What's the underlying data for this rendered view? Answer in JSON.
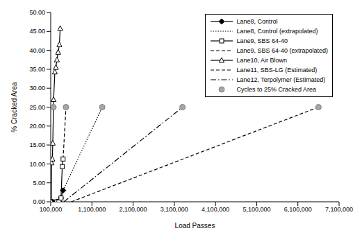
{
  "chart_data": {
    "type": "line",
    "x_label": "Load Passes",
    "y_label": "% Cracked Area",
    "xlim": [
      100000,
      7100000
    ],
    "ylim": [
      0,
      50
    ],
    "xticks": [
      {
        "value": 100000,
        "label": "100,000"
      },
      {
        "value": 1100000,
        "label": "1,100,000"
      },
      {
        "value": 2100000,
        "label": "2,100,000"
      },
      {
        "value": 3100000,
        "label": "3,100,000"
      },
      {
        "value": 4100000,
        "label": "4,100,000"
      },
      {
        "value": 5100000,
        "label": "5,100,000"
      },
      {
        "value": 6100000,
        "label": "6,100,000"
      },
      {
        "value": 7100000,
        "label": "7,100,000"
      }
    ],
    "yticks": [
      {
        "value": 0,
        "label": "0.00"
      },
      {
        "value": 5,
        "label": "5.00"
      },
      {
        "value": 10,
        "label": "10.00"
      },
      {
        "value": 15,
        "label": "15.00"
      },
      {
        "value": 20,
        "label": "20.00"
      },
      {
        "value": 25,
        "label": "25.00"
      },
      {
        "value": 30,
        "label": "30.00"
      },
      {
        "value": 35,
        "label": "35.00"
      },
      {
        "value": 40,
        "label": "40.00"
      },
      {
        "value": 45,
        "label": "45.00"
      },
      {
        "value": 50,
        "label": "50.00"
      }
    ],
    "grid": false,
    "legend": "top-right",
    "series": [
      {
        "name": "Lane8, Control",
        "type": "line",
        "color": "#000000",
        "marker": "diamond",
        "line_style": "solid",
        "x": [
          150000,
          250000,
          300000,
          350000,
          400000
        ],
        "values": [
          0,
          0,
          0,
          1,
          3
        ]
      },
      {
        "name": "Lane8, Control (extrapolated)",
        "type": "line",
        "color": "#000000",
        "marker": "none",
        "line_style": "dotted",
        "x": [
          400000,
          1350000
        ],
        "values": [
          3,
          25
        ]
      },
      {
        "name": "Lane9, SBS 64-40",
        "type": "line",
        "color": "#000000",
        "marker": "square-open",
        "line_style": "solid",
        "x": [
          250000,
          300000,
          350000,
          380000,
          400000
        ],
        "values": [
          0,
          0,
          1,
          9.3,
          11.3
        ]
      },
      {
        "name": "Lane9, SBS 64-40 (extrapolated)",
        "type": "line",
        "color": "#000000",
        "marker": "none",
        "line_style": "dashed",
        "x": [
          400000,
          470000
        ],
        "values": [
          11.3,
          25
        ]
      },
      {
        "name": "Lane10, Air Blown",
        "type": "line",
        "color": "#000000",
        "marker": "triangle-open",
        "line_style": "solid",
        "x": [
          115000,
          120000,
          140000,
          150000,
          170000,
          200000,
          225000,
          250000,
          280000,
          310000,
          330000
        ],
        "values": [
          0,
          10.3,
          11.3,
          15.5,
          27,
          34.3,
          35.5,
          37.5,
          39.5,
          41.5,
          45.8
        ]
      },
      {
        "name": "Lane11, SBS-LG (Estimated)",
        "type": "line",
        "color": "#000000",
        "marker": "none",
        "line_style": "dashed",
        "x": [
          600000,
          6600000
        ],
        "values": [
          0,
          25
        ]
      },
      {
        "name": "Lane12, Terpolymer (Estimated)",
        "type": "line",
        "color": "#000000",
        "marker": "none",
        "line_style": "dashdot",
        "x": [
          420000,
          3300000
        ],
        "values": [
          0,
          25
        ]
      },
      {
        "name": "Cycles to 25% Cracked Area",
        "type": "scatter",
        "color": "#a6a6a6",
        "marker": "circle",
        "line_style": "none",
        "x": [
          167000,
          470000,
          1350000,
          3300000,
          6600000
        ],
        "values": [
          25,
          25,
          25,
          25,
          25
        ]
      }
    ]
  }
}
